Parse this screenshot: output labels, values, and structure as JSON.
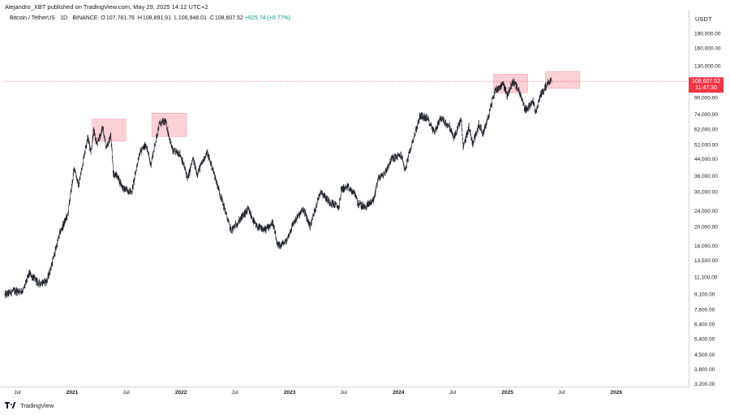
{
  "header": {
    "published_line": "Alejandro_XBT published on TradingView.com, May 29, 2025 14:12 UTC+2"
  },
  "symbol": {
    "name": "Bitcoin / TetherUS",
    "interval": "1D",
    "exchange": "BINANCE",
    "open_label": "O",
    "open": "107,781.78",
    "high_label": "H",
    "high": "108,891.91",
    "low_label": "L",
    "low": "106,948.01",
    "close_label": "C",
    "close": "108,607.52",
    "change": "+825.74 (+0.77%)"
  },
  "axis": {
    "currency": "USDT"
  },
  "price_tag": {
    "price": "108,607.52",
    "countdown": "11:47:30",
    "color": "#f23645"
  },
  "footer": {
    "brand": "TradingView"
  },
  "colors": {
    "candle": "#131722",
    "highlight_box": "#f7a9b4",
    "current_price_line": "#f23645",
    "positive_change": "#089981"
  },
  "chart_data": {
    "type": "line",
    "title": "",
    "xlabel": "",
    "ylabel": "",
    "y_scale": "log",
    "ylim": [
      3100,
      250000
    ],
    "xlim": [
      "2020-05-20",
      "2026-09-01"
    ],
    "grid": false,
    "y_tick_labels": [
      "190,000.00",
      "160,000.00",
      "130,000.00",
      "90,000.00",
      "74,000.00",
      "62,000.00",
      "52,000.00",
      "44,000.00",
      "36,000.00",
      "30,000.00",
      "24,000.00",
      "20,000.00",
      "16,000.00",
      "13,500.00",
      "11,100.00",
      "9,100.00",
      "7,600.00",
      "6,400.00",
      "5,400.00",
      "4,500.00",
      "3,800.00",
      "3,200.00"
    ],
    "y_tick_values": [
      190000,
      160000,
      130000,
      90000,
      74000,
      62000,
      52000,
      44000,
      36000,
      30000,
      24000,
      20000,
      16000,
      13500,
      11100,
      9100,
      7600,
      6400,
      5400,
      4500,
      3800,
      3200
    ],
    "x_tick_labels": [
      "Jul",
      "2021",
      "Jul",
      "2022",
      "Jul",
      "2023",
      "Jul",
      "2024",
      "Jul",
      "2025",
      "Jul",
      "2026"
    ],
    "x_tick_dates": [
      "2020-07-01",
      "2021-01-01",
      "2021-07-01",
      "2022-01-01",
      "2022-07-01",
      "2023-01-01",
      "2023-07-01",
      "2024-01-01",
      "2024-07-01",
      "2025-01-01",
      "2025-07-01",
      "2026-01-01"
    ],
    "series": [
      {
        "x": [
          "2020-05-20",
          "2020-06-15",
          "2020-07-20",
          "2020-08-10",
          "2020-09-10",
          "2020-10-08",
          "2020-10-25",
          "2020-11-20",
          "2020-12-17",
          "2021-01-08",
          "2021-01-22",
          "2021-02-21",
          "2021-03-05",
          "2021-03-13",
          "2021-03-25",
          "2021-04-14",
          "2021-04-25",
          "2021-05-10",
          "2021-05-19",
          "2021-06-01",
          "2021-06-22",
          "2021-07-20",
          "2021-08-14",
          "2021-09-06",
          "2021-09-21",
          "2021-10-20",
          "2021-11-10",
          "2021-12-04",
          "2021-12-28",
          "2022-01-24",
          "2022-02-10",
          "2022-02-24",
          "2022-03-29",
          "2022-04-15",
          "2022-05-10",
          "2022-06-18",
          "2022-07-10",
          "2022-08-14",
          "2022-09-10",
          "2022-10-10",
          "2022-11-05",
          "2022-11-21",
          "2022-12-20",
          "2023-01-14",
          "2023-02-16",
          "2023-03-10",
          "2023-04-14",
          "2023-05-10",
          "2023-06-15",
          "2023-06-23",
          "2023-07-14",
          "2023-08-10",
          "2023-08-18",
          "2023-09-11",
          "2023-10-10",
          "2023-10-24",
          "2023-11-15",
          "2023-12-08",
          "2024-01-10",
          "2024-01-23",
          "2024-02-14",
          "2024-03-14",
          "2024-04-08",
          "2024-05-01",
          "2024-05-21",
          "2024-06-20",
          "2024-07-05",
          "2024-07-29",
          "2024-08-05",
          "2024-08-24",
          "2024-09-06",
          "2024-09-27",
          "2024-10-10",
          "2024-10-29",
          "2024-11-12",
          "2024-11-22",
          "2024-12-05",
          "2024-12-17",
          "2024-12-30",
          "2025-01-20",
          "2025-02-10",
          "2025-02-28",
          "2025-03-10",
          "2025-03-25",
          "2025-04-07",
          "2025-04-22",
          "2025-05-01",
          "2025-05-12",
          "2025-05-22",
          "2025-05-29"
        ],
        "y": [
          9000,
          9400,
          9500,
          11600,
          10300,
          10600,
          13000,
          18500,
          23000,
          40000,
          32000,
          57000,
          48000,
          61000,
          52000,
          63500,
          49000,
          58000,
          37000,
          36000,
          31000,
          30000,
          47000,
          52000,
          41000,
          66000,
          68000,
          48000,
          47000,
          35000,
          44000,
          37000,
          47500,
          40000,
          30000,
          19000,
          21000,
          24400,
          20000,
          19200,
          21000,
          15800,
          16800,
          21000,
          24500,
          20000,
          30400,
          27000,
          25000,
          31000,
          31500,
          29000,
          26000,
          25000,
          27500,
          35000,
          37000,
          44000,
          46000,
          38500,
          52000,
          73000,
          70000,
          60000,
          71000,
          64000,
          56000,
          70000,
          50000,
          64000,
          52500,
          66000,
          59000,
          72000,
          89000,
          99000,
          101000,
          107000,
          92000,
          109000,
          96000,
          79000,
          78000,
          88000,
          75000,
          94000,
          97000,
          104000,
          110000,
          108607
        ]
      }
    ],
    "annotations": [
      {
        "type": "highlight_box",
        "x_from": "2021-03-09",
        "x_to": "2021-06-30",
        "y_from": 54000,
        "y_to": 70000
      },
      {
        "type": "highlight_box",
        "x_from": "2021-09-25",
        "x_to": "2022-01-20",
        "y_from": 57000,
        "y_to": 75000
      },
      {
        "type": "highlight_box",
        "x_from": "2024-11-15",
        "x_to": "2025-03-10",
        "y_from": 95000,
        "y_to": 118000
      },
      {
        "type": "highlight_box",
        "x_from": "2025-05-08",
        "x_to": "2025-09-01",
        "y_from": 100000,
        "y_to": 122000
      },
      {
        "type": "price_line",
        "y": 108607.52
      }
    ]
  }
}
